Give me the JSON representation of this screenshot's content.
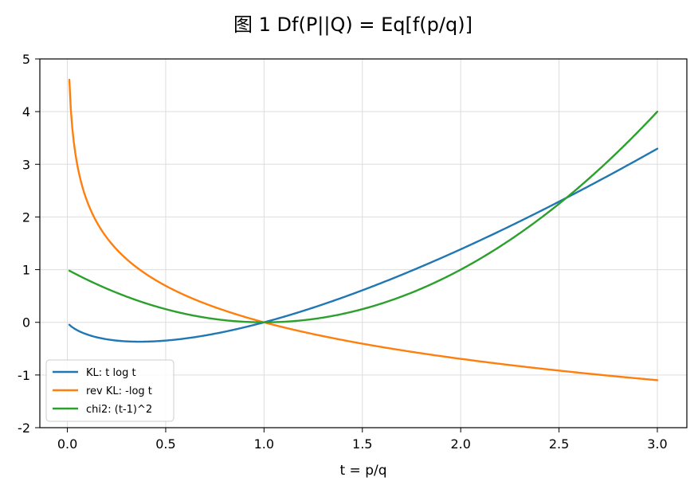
{
  "chart_data": {
    "type": "line",
    "title": "图 1    Df(P||Q) = Eq[f(p/q)]",
    "xlabel": "t = p/q",
    "ylabel": "",
    "xlim": [
      -0.14,
      3.15
    ],
    "ylim": [
      -2,
      5
    ],
    "xticks": [
      0.0,
      0.5,
      1.0,
      1.5,
      2.0,
      2.5,
      3.0
    ],
    "xtick_labels": [
      "0.0",
      "0.5",
      "1.0",
      "1.5",
      "2.0",
      "2.5",
      "3.0"
    ],
    "yticks": [
      -2,
      -1,
      0,
      1,
      2,
      3,
      4,
      5
    ],
    "ytick_labels": [
      "-2",
      "-1",
      "0",
      "1",
      "2",
      "3",
      "4",
      "5"
    ],
    "grid": true,
    "legend_position": "lower-left",
    "series": [
      {
        "name": "KL: t log t",
        "color": "#1f77b4",
        "formula": "t*ln(t)"
      },
      {
        "name": "rev KL: -log t",
        "color": "#ff7f0e",
        "formula": "-ln(t)"
      },
      {
        "name": "chi2: (t-1)^2",
        "color": "#2ca02c",
        "formula": "(t-1)^2"
      }
    ],
    "x_range": [
      0.01,
      3.0
    ]
  }
}
